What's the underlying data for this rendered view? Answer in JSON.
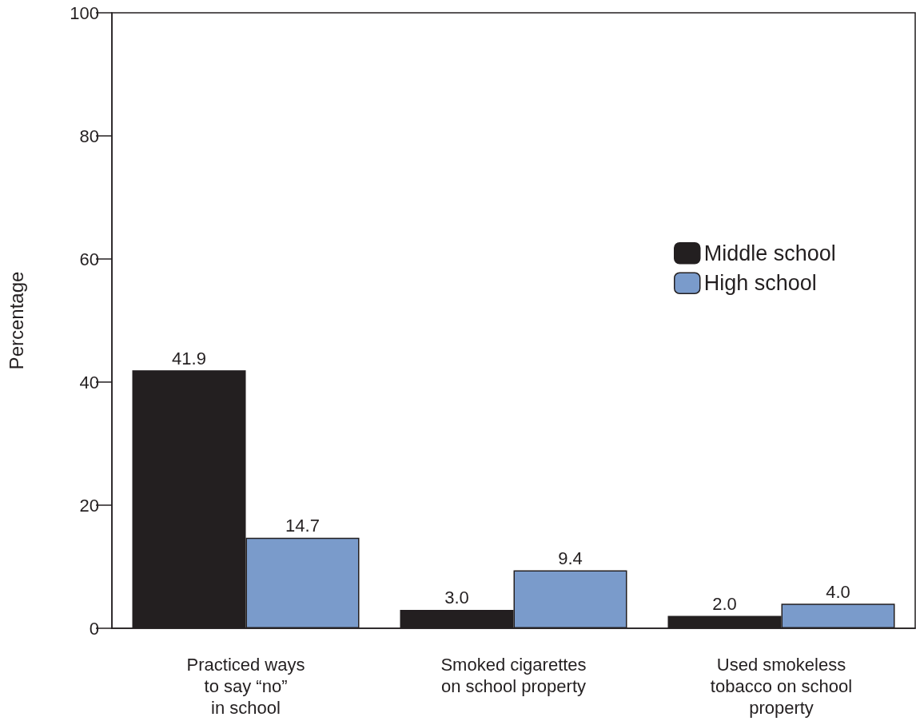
{
  "chart_data": {
    "type": "bar",
    "ylabel": "Percentage",
    "categories": [
      "Practiced ways\nto say “no”\nin school",
      "Smoked cigarettes\non school property",
      "Used smokeless\ntobacco on school\nproperty"
    ],
    "series": [
      {
        "name": "Middle school",
        "color": "#231f20",
        "values": [
          41.9,
          3.0,
          2.0
        ],
        "value_labels": [
          "41.9",
          "3.0",
          "2.0"
        ]
      },
      {
        "name": "High school",
        "color": "#7a9bcb",
        "values": [
          14.7,
          9.4,
          4.0
        ],
        "value_labels": [
          "14.7",
          "9.4",
          "4.0"
        ]
      }
    ],
    "ylim": [
      0,
      100
    ],
    "yticks": [
      0,
      20,
      40,
      60,
      80,
      100
    ],
    "grid": false,
    "legend": "right"
  }
}
